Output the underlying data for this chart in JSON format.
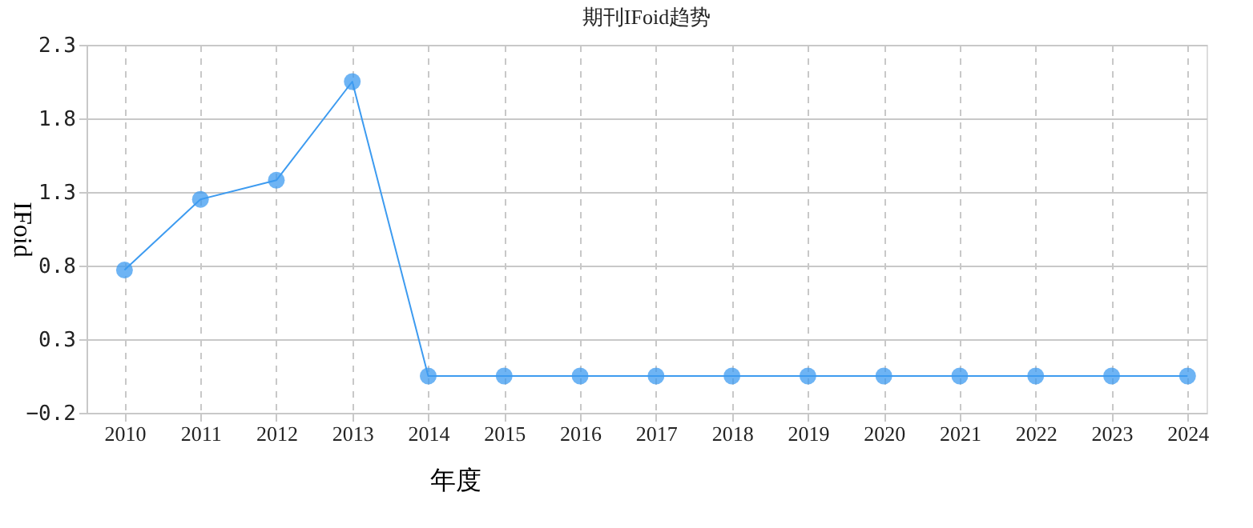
{
  "chart_data": {
    "type": "line",
    "title": "期刊IFoid趋势",
    "xlabel": "年度",
    "ylabel": "IFoid",
    "categories": [
      "2010",
      "2011",
      "2012",
      "2013",
      "2014",
      "2015",
      "2016",
      "2017",
      "2018",
      "2019",
      "2020",
      "2021",
      "2022",
      "2023",
      "2024"
    ],
    "series": [
      {
        "color": "#3d9bf0",
        "values": [
          0.77,
          1.25,
          1.38,
          2.05,
          0.05,
          0.05,
          0.05,
          0.05,
          0.05,
          0.05,
          0.05,
          0.05,
          0.05,
          0.05,
          0.05
        ]
      }
    ],
    "ylim": [
      -0.2,
      2.3
    ],
    "yticks": [
      -0.2,
      0.3,
      0.8,
      1.3,
      1.8,
      2.3
    ],
    "grid": true,
    "marker": "circle",
    "line_style": "solid",
    "legend": false
  }
}
